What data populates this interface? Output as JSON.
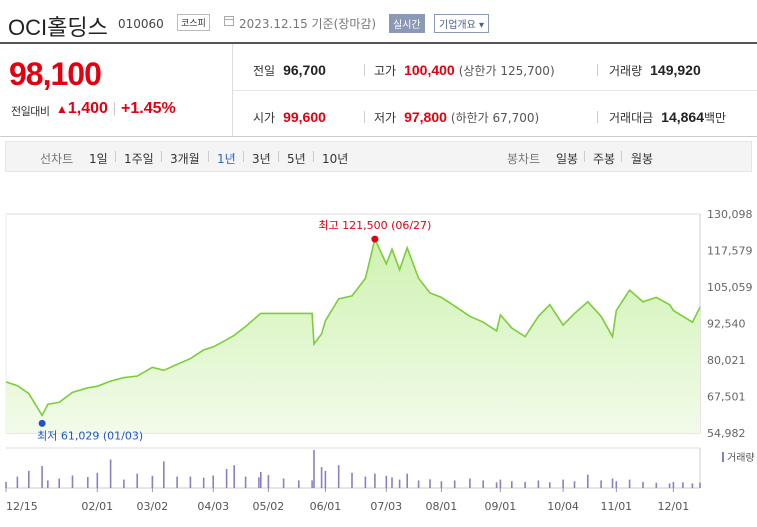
{
  "header": {
    "title": "OCI홀딩스",
    "code": "010060",
    "market": "코스피",
    "date": "2023.12.15 기준(장마감)",
    "realtime_label": "실시간",
    "overview_label": "기업개요 ▾"
  },
  "quote": {
    "price": "98,100",
    "change_label": "전일대비",
    "change_amount": "1,400",
    "change_pct": "+1.45%",
    "prev_close_label": "전일",
    "prev_close": "96,700",
    "high_label": "고가",
    "high": "100,400",
    "upper_limit": "(상한가 125,700)",
    "volume_label": "거래량",
    "volume": "149,920",
    "open_label": "시가",
    "open": "99,600",
    "low_label": "저가",
    "low": "97,800",
    "lower_limit": "(하한가 67,700)",
    "value_label": "거래대금",
    "value": "14,864",
    "value_unit": "백만"
  },
  "period_bar": {
    "line_label": "선차트",
    "periods": [
      "1일",
      "1주일",
      "3개월",
      "1년",
      "3년",
      "5년",
      "10년"
    ],
    "selected": "1년",
    "candle_label": "봉차트",
    "candles": [
      "일봉",
      "주봉",
      "월봉"
    ]
  },
  "colors": {
    "up": "#e4000f",
    "line": "#7ccd3a",
    "fill_top": "#cff2b1",
    "fill_bottom": "#f2fbea",
    "max_dot": "#e4000f",
    "min_dot": "#1f55c8",
    "volume_bar": "#8a7fc7"
  },
  "chart_data": {
    "type": "area",
    "x_tick_labels": [
      "12/15",
      "02/01",
      "03/02",
      "04/03",
      "05/02",
      "06/01",
      "07/03",
      "08/01",
      "09/01",
      "10/04",
      "11/01",
      "12/01"
    ],
    "y_ticks": [
      130098,
      117579,
      105059,
      92540,
      80021,
      67501,
      54982
    ],
    "ylim": [
      54982,
      130098
    ],
    "max_annotation": "최고 121,500 (06/27)",
    "min_annotation": "최저 61,029 (01/03)",
    "volume_label": "거래량",
    "dates": [
      "2022-12-15",
      "2022-12-21",
      "2022-12-27",
      "2023-01-03",
      "2023-01-06",
      "2023-01-12",
      "2023-01-19",
      "2023-01-27",
      "2023-02-01",
      "2023-02-08",
      "2023-02-15",
      "2023-02-22",
      "2023-03-02",
      "2023-03-08",
      "2023-03-15",
      "2023-03-22",
      "2023-03-29",
      "2023-04-03",
      "2023-04-10",
      "2023-04-14",
      "2023-04-20",
      "2023-04-27",
      "2023-04-28",
      "2023-05-02",
      "2023-05-10",
      "2023-05-18",
      "2023-05-25",
      "2023-05-26",
      "2023-05-30",
      "2023-06-01",
      "2023-06-08",
      "2023-06-15",
      "2023-06-22",
      "2023-06-27",
      "2023-07-03",
      "2023-07-06",
      "2023-07-10",
      "2023-07-14",
      "2023-07-20",
      "2023-07-26",
      "2023-08-01",
      "2023-08-08",
      "2023-08-16",
      "2023-08-23",
      "2023-08-30",
      "2023-09-01",
      "2023-09-07",
      "2023-09-14",
      "2023-09-21",
      "2023-09-27",
      "2023-10-04",
      "2023-10-10",
      "2023-10-17",
      "2023-10-24",
      "2023-10-30",
      "2023-11-01",
      "2023-11-08",
      "2023-11-15",
      "2023-11-22",
      "2023-11-29",
      "2023-12-01",
      "2023-12-06",
      "2023-12-11",
      "2023-12-15"
    ],
    "values": [
      72500,
      71200,
      68500,
      61029,
      64800,
      65500,
      68900,
      70500,
      71000,
      72800,
      74000,
      74500,
      77500,
      76500,
      78500,
      80500,
      83500,
      84500,
      87000,
      88500,
      91500,
      95500,
      96000,
      96000,
      96000,
      96000,
      96000,
      85500,
      89000,
      93500,
      101000,
      102000,
      108000,
      121500,
      113000,
      118000,
      111000,
      118500,
      108000,
      103000,
      101500,
      98500,
      95000,
      93000,
      90000,
      95500,
      91000,
      88000,
      95000,
      99000,
      92000,
      96000,
      100000,
      95000,
      88000,
      97000,
      104000,
      100000,
      101500,
      99000,
      97000,
      95000,
      93000,
      98100
    ],
    "volumes": [
      0.16,
      0.3,
      0.45,
      0.58,
      0.2,
      0.25,
      0.33,
      0.29,
      0.4,
      0.75,
      0.22,
      0.38,
      0.32,
      0.7,
      0.3,
      0.3,
      0.27,
      0.33,
      0.5,
      0.6,
      0.3,
      0.28,
      0.42,
      0.34,
      0.25,
      0.2,
      0.2,
      1.0,
      0.55,
      0.45,
      0.6,
      0.4,
      0.3,
      0.38,
      0.32,
      0.28,
      0.22,
      0.38,
      0.2,
      0.23,
      0.18,
      0.2,
      0.25,
      0.2,
      0.15,
      0.22,
      0.18,
      0.16,
      0.2,
      0.15,
      0.22,
      0.18,
      0.35,
      0.2,
      0.25,
      0.18,
      0.22,
      0.16,
      0.14,
      0.12,
      0.16,
      0.15,
      0.12,
      0.14
    ]
  }
}
